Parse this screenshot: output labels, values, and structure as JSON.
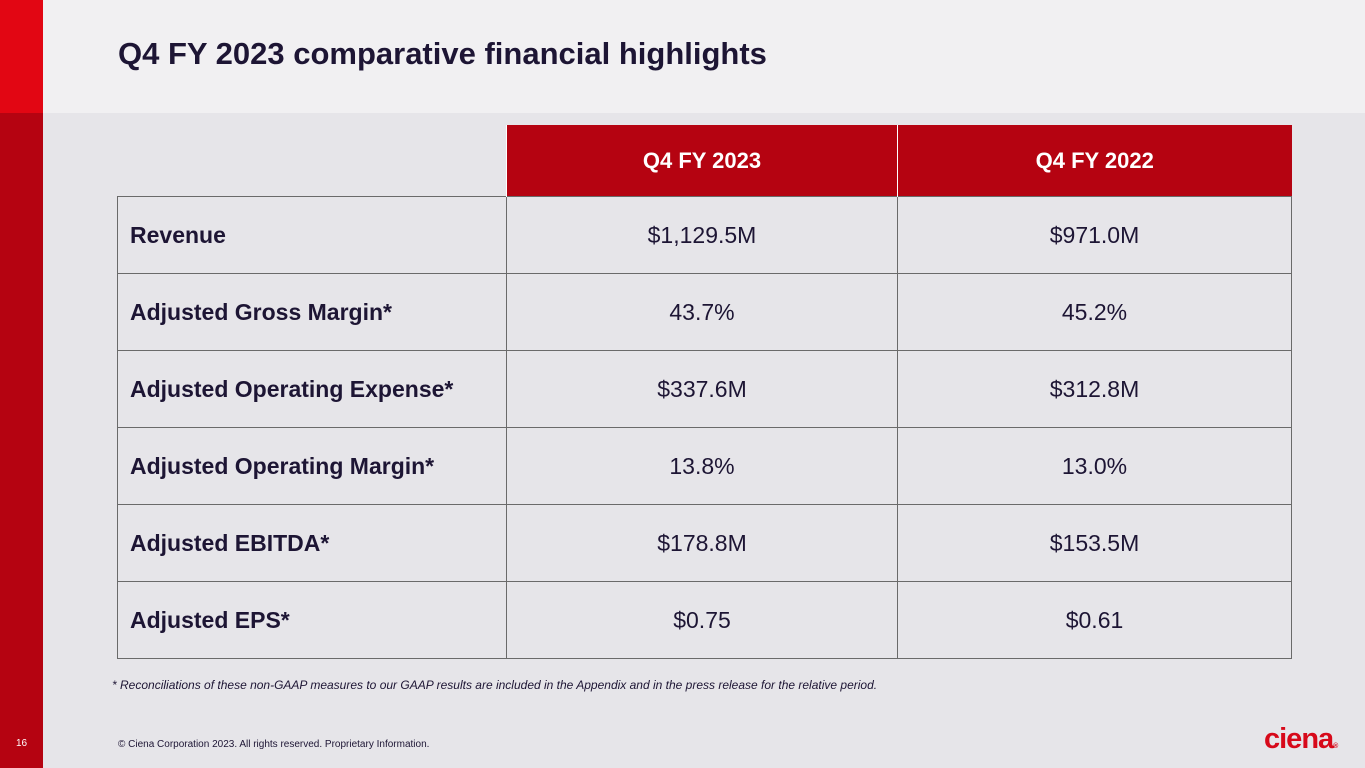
{
  "slide": {
    "title": "Q4 FY 2023 comparative financial highlights",
    "page_number": "16",
    "copyright": "© Ciena Corporation 2023. All rights reserved. Proprietary Information.",
    "footnote": "* Reconciliations of these non-GAAP measures to our GAAP results are included in the Appendix and in the press release for the relative period.",
    "logo_text": "ciena",
    "logo_mark": "®"
  },
  "table": {
    "headers": [
      "",
      "Q4 FY 2023",
      "Q4 FY 2022"
    ],
    "rows": [
      {
        "metric": "Revenue",
        "fy2023": "$1,129.5M",
        "fy2022": "$971.0M"
      },
      {
        "metric": "Adjusted Gross Margin*",
        "fy2023": "43.7%",
        "fy2022": "45.2%"
      },
      {
        "metric": "Adjusted Operating Expense*",
        "fy2023": "$337.6M",
        "fy2022": "$312.8M"
      },
      {
        "metric": "Adjusted Operating Margin*",
        "fy2023": "13.8%",
        "fy2022": "13.0%"
      },
      {
        "metric": "Adjusted EBITDA*",
        "fy2023": "$178.8M",
        "fy2022": "$153.5M"
      },
      {
        "metric": "Adjusted EPS*",
        "fy2023": "$0.75",
        "fy2022": "$0.61"
      }
    ]
  },
  "colors": {
    "brand_red": "#b50311",
    "accent_red": "#e20613",
    "text_dark": "#1d1534",
    "background": "#e6e5e9"
  }
}
